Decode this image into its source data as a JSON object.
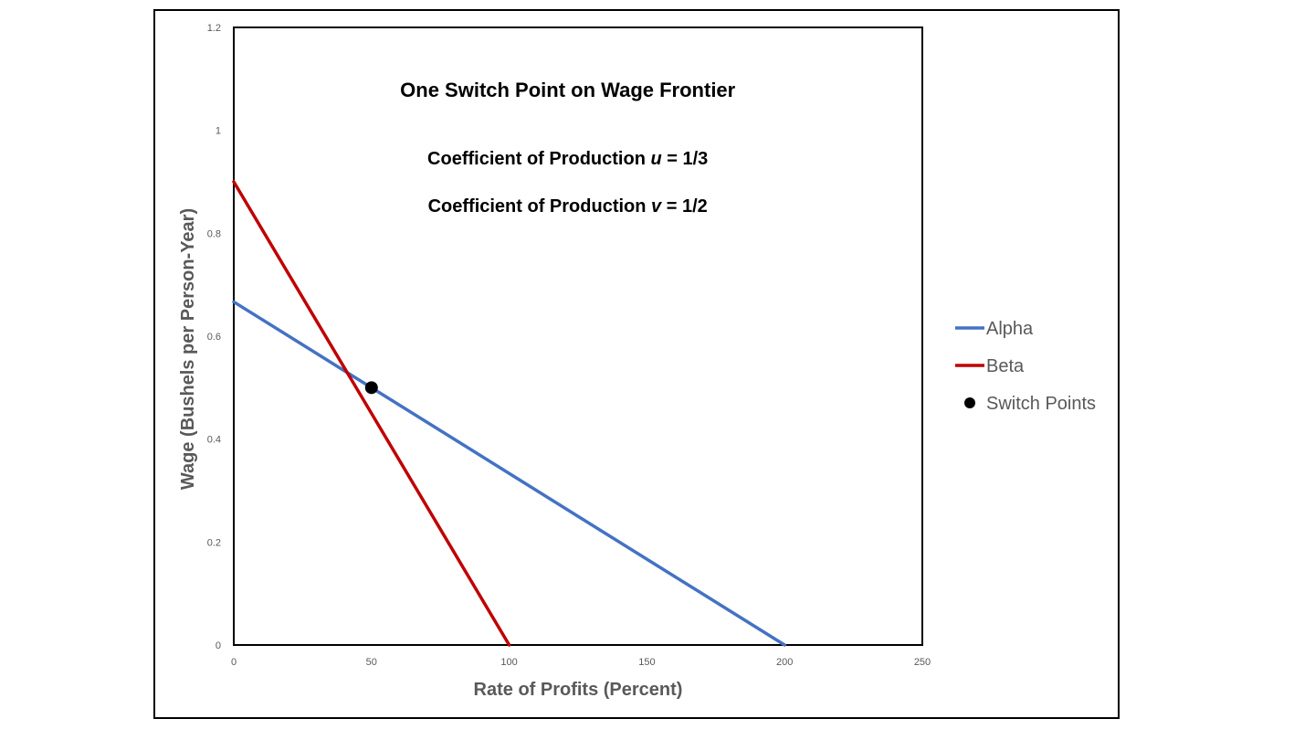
{
  "chart_data": {
    "type": "line",
    "title": "",
    "xlabel": "Rate of Profits (Percent)",
    "ylabel": "Wage (Bushels per Person-Year)",
    "xlim": [
      0,
      250
    ],
    "ylim": [
      0,
      1.2
    ],
    "x_ticks": [
      "0",
      "50",
      "100",
      "150",
      "200",
      "250"
    ],
    "y_ticks": [
      "0",
      "0.2",
      "0.4",
      "0.6",
      "0.8",
      "1",
      "1.2"
    ],
    "grid": false,
    "legend_position": "right",
    "annotations": [
      "One Switch Point on Wage Frontier"
    ],
    "coefficient_u": {
      "prefix": "Coefficient of Production ",
      "symbol": "u",
      "suffix": " = 1/3"
    },
    "coefficient_v": {
      "prefix": "Coefficient of Production ",
      "symbol": "v",
      "suffix": " = 1/2"
    },
    "series": [
      {
        "name": "Alpha",
        "color": "#4472C4",
        "x": [
          0,
          200
        ],
        "y": [
          0.6667,
          0
        ]
      },
      {
        "name": "Beta",
        "color": "#C00000",
        "x": [
          0,
          100
        ],
        "y": [
          0.9,
          0
        ]
      },
      {
        "name": "Switch Points",
        "color": "#000000",
        "marker": "circle",
        "x": [
          50
        ],
        "y": [
          0.5
        ]
      }
    ]
  }
}
